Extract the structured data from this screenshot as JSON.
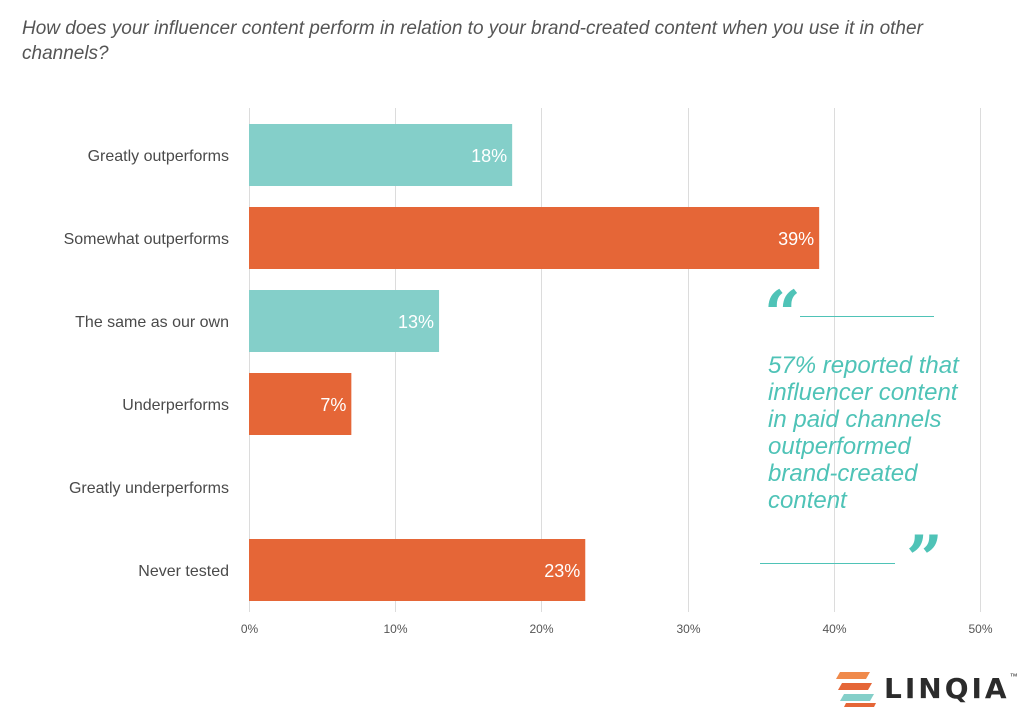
{
  "chart_data": {
    "type": "bar",
    "orientation": "horizontal",
    "title": "How does your influencer content perform in relation to your brand-created content when you use it in other channels?",
    "categories": [
      "Greatly outperforms",
      "Somewhat outperforms",
      "The same as our own",
      "Underperforms",
      "Greatly underperforms",
      "Never tested"
    ],
    "values": [
      18,
      39,
      13,
      7,
      0,
      23
    ],
    "value_labels": [
      "18%",
      "39%",
      "13%",
      "7%",
      "",
      "23%"
    ],
    "bar_colors": [
      "#84cfc9",
      "#e56637",
      "#84cfc9",
      "#e56637",
      "#e56637",
      "#e56637"
    ],
    "xlim": [
      0,
      50
    ],
    "xticks": [
      0,
      10,
      20,
      30,
      40,
      50
    ],
    "xtick_labels": [
      "0%",
      "10%",
      "20%",
      "30%",
      "40%",
      "50%"
    ],
    "grid": true,
    "xlabel": "",
    "ylabel": ""
  },
  "callout": {
    "text": "57% reported that influencer content in paid channels outperformed brand-created content",
    "color": "#4fc3b7",
    "open_quote": "“",
    "close_quote": "”"
  },
  "logo": {
    "text": "LINQIA",
    "trademark": "™",
    "colors": [
      "#f08a4b",
      "#e56637",
      "#84cfc9"
    ]
  }
}
